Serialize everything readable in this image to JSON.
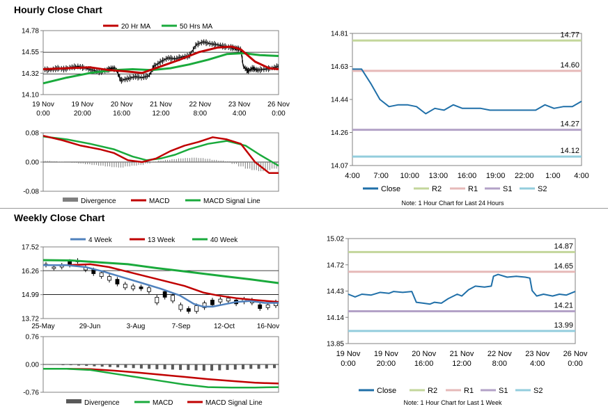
{
  "hourly": {
    "section_title": "Hourly Close Chart",
    "price_chart": {
      "type": "line",
      "legend": [
        "20 Hr MA",
        "50 Hrs MA"
      ],
      "legend_colors": [
        "#c00000",
        "#1aaa3c"
      ],
      "y_ticks": [
        "14.78",
        "14.55",
        "14.32",
        "14.10"
      ],
      "ylim": [
        14.1,
        14.78
      ],
      "x_ticks": [
        [
          "19 Nov",
          "0:00"
        ],
        [
          "19 Nov",
          "20:00"
        ],
        [
          "20 Nov",
          "16:00"
        ],
        [
          "21 Nov",
          "12:00"
        ],
        [
          "22 Nov",
          "8:00"
        ],
        [
          "23 Nov",
          "4:00"
        ],
        [
          "26 Nov",
          "0:00"
        ]
      ],
      "close": [
        [
          0,
          14.37
        ],
        [
          0.03,
          14.36
        ],
        [
          0.06,
          14.38
        ],
        [
          0.09,
          14.37
        ],
        [
          0.12,
          14.39
        ],
        [
          0.15,
          14.4
        ],
        [
          0.18,
          14.38
        ],
        [
          0.21,
          14.36
        ],
        [
          0.24,
          14.34
        ],
        [
          0.27,
          14.36
        ],
        [
          0.29,
          14.38
        ],
        [
          0.31,
          14.37
        ],
        [
          0.33,
          14.25
        ],
        [
          0.36,
          14.27
        ],
        [
          0.39,
          14.29
        ],
        [
          0.42,
          14.28
        ],
        [
          0.45,
          14.3
        ],
        [
          0.47,
          14.4
        ],
        [
          0.5,
          14.45
        ],
        [
          0.53,
          14.49
        ],
        [
          0.56,
          14.48
        ],
        [
          0.59,
          14.5
        ],
        [
          0.62,
          14.51
        ],
        [
          0.65,
          14.63
        ],
        [
          0.68,
          14.66
        ],
        [
          0.71,
          14.64
        ],
        [
          0.74,
          14.63
        ],
        [
          0.77,
          14.61
        ],
        [
          0.8,
          14.6
        ],
        [
          0.82,
          14.59
        ],
        [
          0.84,
          14.58
        ],
        [
          0.85,
          14.4
        ],
        [
          0.87,
          14.35
        ],
        [
          0.89,
          14.38
        ],
        [
          0.91,
          14.36
        ],
        [
          0.94,
          14.37
        ],
        [
          0.97,
          14.38
        ],
        [
          1.0,
          14.4
        ]
      ],
      "ma20": [
        [
          0,
          14.37
        ],
        [
          0.1,
          14.38
        ],
        [
          0.2,
          14.39
        ],
        [
          0.28,
          14.36
        ],
        [
          0.34,
          14.35
        ],
        [
          0.42,
          14.33
        ],
        [
          0.5,
          14.4
        ],
        [
          0.58,
          14.47
        ],
        [
          0.66,
          14.55
        ],
        [
          0.74,
          14.6
        ],
        [
          0.8,
          14.61
        ],
        [
          0.84,
          14.58
        ],
        [
          0.9,
          14.45
        ],
        [
          0.96,
          14.38
        ],
        [
          1.0,
          14.37
        ]
      ],
      "ma50": [
        [
          0,
          14.22
        ],
        [
          0.1,
          14.28
        ],
        [
          0.2,
          14.33
        ],
        [
          0.3,
          14.36
        ],
        [
          0.38,
          14.37
        ],
        [
          0.46,
          14.36
        ],
        [
          0.54,
          14.38
        ],
        [
          0.62,
          14.42
        ],
        [
          0.7,
          14.47
        ],
        [
          0.78,
          14.53
        ],
        [
          0.85,
          14.54
        ],
        [
          0.92,
          14.52
        ],
        [
          1.0,
          14.51
        ]
      ]
    },
    "macd_chart": {
      "type": "line",
      "y_ticks": [
        "0.08",
        "0.00",
        "-0.08"
      ],
      "ylim": [
        -0.08,
        0.08
      ],
      "legend": [
        "Divergence",
        "MACD",
        "MACD Signal Line"
      ],
      "legend_colors": [
        "#7f7f7f",
        "#c00000",
        "#1aaa3c"
      ],
      "macd": [
        [
          0,
          0.072
        ],
        [
          0.08,
          0.06
        ],
        [
          0.16,
          0.045
        ],
        [
          0.24,
          0.035
        ],
        [
          0.3,
          0.025
        ],
        [
          0.36,
          0.005
        ],
        [
          0.42,
          0.0
        ],
        [
          0.48,
          0.01
        ],
        [
          0.54,
          0.03
        ],
        [
          0.6,
          0.045
        ],
        [
          0.66,
          0.055
        ],
        [
          0.72,
          0.068
        ],
        [
          0.78,
          0.062
        ],
        [
          0.84,
          0.05
        ],
        [
          0.9,
          0.0
        ],
        [
          0.96,
          -0.03
        ],
        [
          1.0,
          -0.03
        ]
      ],
      "signal": [
        [
          0,
          0.07
        ],
        [
          0.1,
          0.062
        ],
        [
          0.2,
          0.05
        ],
        [
          0.3,
          0.035
        ],
        [
          0.38,
          0.015
        ],
        [
          0.44,
          0.005
        ],
        [
          0.5,
          0.01
        ],
        [
          0.56,
          0.02
        ],
        [
          0.62,
          0.035
        ],
        [
          0.7,
          0.05
        ],
        [
          0.78,
          0.058
        ],
        [
          0.86,
          0.045
        ],
        [
          0.92,
          0.02
        ],
        [
          1.0,
          -0.01
        ]
      ],
      "divergence": [
        0.003,
        0.002,
        0.001,
        0.0,
        -0.002,
        -0.004,
        -0.006,
        -0.008,
        -0.01,
        -0.012,
        -0.014,
        -0.015,
        -0.012,
        -0.01,
        -0.008,
        -0.004,
        0.001,
        0.004,
        0.006,
        0.008,
        0.01,
        0.011,
        0.012,
        0.011,
        0.009,
        0.006,
        0.004,
        0.002,
        -0.005,
        -0.012,
        -0.018,
        -0.022,
        -0.025,
        -0.022,
        -0.018
      ]
    },
    "pivot_chart": {
      "type": "line",
      "y_ticks": [
        "14.81",
        "14.63",
        "14.44",
        "14.26",
        "14.07"
      ],
      "ylim": [
        14.07,
        14.81
      ],
      "x_ticks": [
        "4:00",
        "7:00",
        "10:00",
        "13:00",
        "16:00",
        "19:00",
        "22:00",
        "1:00",
        "4:00"
      ],
      "levels": {
        "R2": 14.77,
        "R1": 14.6,
        "S1": 14.27,
        "S2": 14.12
      },
      "level_labels": [
        "14.77",
        "14.60",
        "14.27",
        "14.12"
      ],
      "legend": [
        "Close",
        "R2",
        "R1",
        "S1",
        "S2"
      ],
      "legend_colors": [
        "#1f6fa8",
        "#c3d69b",
        "#e6b9b8",
        "#b3a2c7",
        "#93cddd"
      ],
      "close": [
        [
          0,
          14.61
        ],
        [
          1,
          14.61
        ],
        [
          2,
          14.53
        ],
        [
          3,
          14.44
        ],
        [
          4,
          14.4
        ],
        [
          5,
          14.41
        ],
        [
          6,
          14.41
        ],
        [
          7,
          14.4
        ],
        [
          8,
          14.36
        ],
        [
          9,
          14.39
        ],
        [
          10,
          14.38
        ],
        [
          11,
          14.41
        ],
        [
          12,
          14.39
        ],
        [
          13,
          14.39
        ],
        [
          14,
          14.39
        ],
        [
          15,
          14.38
        ],
        [
          16,
          14.38
        ],
        [
          17,
          14.38
        ],
        [
          18,
          14.38
        ],
        [
          19,
          14.38
        ],
        [
          20,
          14.38
        ],
        [
          21,
          14.41
        ],
        [
          22,
          14.39
        ],
        [
          23,
          14.4
        ],
        [
          24,
          14.4
        ],
        [
          25,
          14.43
        ]
      ],
      "note": "Note: 1 Hour Chart for Last 24 Hours"
    }
  },
  "weekly": {
    "section_title": "Weekly Close Chart",
    "price_chart": {
      "type": "line",
      "legend": [
        "4 Week",
        "13 Week",
        "40 Week"
      ],
      "legend_colors": [
        "#4f81bd",
        "#c00000",
        "#1aaa3c"
      ],
      "y_ticks": [
        "17.52",
        "16.26",
        "14.99",
        "13.72"
      ],
      "ylim": [
        13.72,
        17.52
      ],
      "x_ticks": [
        "25-May",
        "29-Jun",
        "3-Aug",
        "7-Sep",
        "12-Oct",
        "16-Nov"
      ],
      "candles": [
        [
          16.55,
          16.6
        ],
        [
          16.4,
          16.45
        ],
        [
          16.45,
          16.55
        ],
        [
          16.55,
          16.75
        ],
        [
          16.75,
          16.8
        ],
        [
          16.3,
          16.45
        ],
        [
          16.1,
          16.3
        ],
        [
          15.95,
          16.15
        ],
        [
          15.75,
          15.95
        ],
        [
          15.55,
          15.8
        ],
        [
          15.35,
          15.55
        ],
        [
          15.3,
          15.45
        ],
        [
          15.3,
          15.4
        ],
        [
          15.15,
          15.35
        ],
        [
          14.55,
          14.85
        ],
        [
          14.85,
          15.15
        ],
        [
          14.65,
          14.95
        ],
        [
          14.2,
          14.45
        ],
        [
          14.1,
          14.25
        ],
        [
          14.1,
          14.4
        ],
        [
          14.3,
          14.55
        ],
        [
          14.45,
          14.7
        ],
        [
          14.6,
          14.75
        ],
        [
          14.65,
          14.8
        ],
        [
          14.5,
          14.7
        ],
        [
          14.6,
          14.75
        ],
        [
          14.55,
          14.7
        ],
        [
          14.25,
          14.45
        ],
        [
          14.3,
          14.45
        ],
        [
          14.4,
          14.6
        ]
      ],
      "wk4": [
        [
          0,
          16.55
        ],
        [
          0.1,
          16.55
        ],
        [
          0.18,
          16.45
        ],
        [
          0.26,
          16.2
        ],
        [
          0.34,
          15.9
        ],
        [
          0.42,
          15.6
        ],
        [
          0.5,
          15.3
        ],
        [
          0.58,
          14.95
        ],
        [
          0.64,
          14.5
        ],
        [
          0.68,
          14.35
        ],
        [
          0.72,
          14.35
        ],
        [
          0.76,
          14.45
        ],
        [
          0.82,
          14.6
        ],
        [
          0.88,
          14.65
        ],
        [
          0.94,
          14.55
        ],
        [
          1.0,
          14.55
        ]
      ],
      "wk13": [
        [
          0,
          16.55
        ],
        [
          0.1,
          16.55
        ],
        [
          0.2,
          16.6
        ],
        [
          0.28,
          16.45
        ],
        [
          0.36,
          16.2
        ],
        [
          0.44,
          15.95
        ],
        [
          0.52,
          15.7
        ],
        [
          0.6,
          15.45
        ],
        [
          0.68,
          15.1
        ],
        [
          0.74,
          14.95
        ],
        [
          0.82,
          14.8
        ],
        [
          0.9,
          14.7
        ],
        [
          1.0,
          14.6
        ]
      ],
      "wk40": [
        [
          0,
          16.82
        ],
        [
          0.12,
          16.8
        ],
        [
          0.24,
          16.7
        ],
        [
          0.36,
          16.6
        ],
        [
          0.48,
          16.4
        ],
        [
          0.58,
          16.25
        ],
        [
          0.68,
          16.1
        ],
        [
          0.78,
          15.95
        ],
        [
          0.88,
          15.8
        ],
        [
          1.0,
          15.6
        ]
      ]
    },
    "macd_chart": {
      "type": "line",
      "y_ticks": [
        "0.76",
        "0.00",
        "-0.76"
      ],
      "ylim": [
        -0.76,
        0.76
      ],
      "legend": [
        "Divergence",
        "MACD",
        "MACD Signal Line"
      ],
      "legend_colors": [
        "#595959",
        "#1aaa3c",
        "#c00000"
      ],
      "macd": [
        [
          0,
          -0.12
        ],
        [
          0.1,
          -0.12
        ],
        [
          0.2,
          -0.15
        ],
        [
          0.3,
          -0.25
        ],
        [
          0.4,
          -0.35
        ],
        [
          0.5,
          -0.45
        ],
        [
          0.6,
          -0.55
        ],
        [
          0.7,
          -0.62
        ],
        [
          0.8,
          -0.63
        ],
        [
          0.9,
          -0.63
        ],
        [
          1.0,
          -0.62
        ]
      ],
      "signal": [
        [
          0,
          -0.12
        ],
        [
          0.1,
          -0.12
        ],
        [
          0.2,
          -0.13
        ],
        [
          0.3,
          -0.17
        ],
        [
          0.4,
          -0.22
        ],
        [
          0.5,
          -0.28
        ],
        [
          0.6,
          -0.34
        ],
        [
          0.7,
          -0.4
        ],
        [
          0.8,
          -0.45
        ],
        [
          0.9,
          -0.5
        ],
        [
          1.0,
          -0.52
        ]
      ],
      "divergence": [
        -0.01,
        -0.01,
        -0.02,
        -0.02,
        -0.03,
        -0.04,
        -0.05,
        -0.06,
        -0.07,
        -0.08,
        -0.09,
        -0.1,
        -0.11,
        -0.12,
        -0.13,
        -0.13,
        -0.14,
        -0.15,
        -0.15,
        -0.16,
        -0.17,
        -0.17,
        -0.16,
        -0.15,
        -0.14,
        -0.13,
        -0.12,
        -0.12,
        -0.11,
        -0.1
      ]
    },
    "pivot_chart": {
      "type": "line",
      "y_ticks": [
        "15.02",
        "14.72",
        "14.43",
        "14.14",
        "13.85"
      ],
      "ylim": [
        13.85,
        15.02
      ],
      "x_ticks": [
        [
          "19 Nov",
          "0:00"
        ],
        [
          "19 Nov",
          "20:00"
        ],
        [
          "20 Nov",
          "16:00"
        ],
        [
          "21 Nov",
          "12:00"
        ],
        [
          "22 Nov",
          "8:00"
        ],
        [
          "23 Nov",
          "4:00"
        ],
        [
          "26 Nov",
          "0:00"
        ]
      ],
      "levels": {
        "R2": 14.87,
        "R1": 14.65,
        "S1": 14.21,
        "S2": 13.99
      },
      "level_labels": [
        "14.87",
        "14.65",
        "14.21",
        "13.99"
      ],
      "legend": [
        "Close",
        "R2",
        "R1",
        "S1",
        "S2"
      ],
      "legend_colors": [
        "#1f6fa8",
        "#c3d69b",
        "#e6b9b8",
        "#b3a2c7",
        "#93cddd"
      ],
      "close": [
        [
          0,
          14.4
        ],
        [
          0.03,
          14.37
        ],
        [
          0.06,
          14.4
        ],
        [
          0.1,
          14.39
        ],
        [
          0.14,
          14.42
        ],
        [
          0.18,
          14.41
        ],
        [
          0.2,
          14.43
        ],
        [
          0.24,
          14.42
        ],
        [
          0.28,
          14.43
        ],
        [
          0.3,
          14.31
        ],
        [
          0.33,
          14.3
        ],
        [
          0.36,
          14.29
        ],
        [
          0.38,
          14.31
        ],
        [
          0.41,
          14.3
        ],
        [
          0.44,
          14.35
        ],
        [
          0.48,
          14.4
        ],
        [
          0.5,
          14.38
        ],
        [
          0.53,
          14.45
        ],
        [
          0.56,
          14.49
        ],
        [
          0.6,
          14.48
        ],
        [
          0.63,
          14.49
        ],
        [
          0.64,
          14.6
        ],
        [
          0.66,
          14.62
        ],
        [
          0.7,
          14.59
        ],
        [
          0.74,
          14.6
        ],
        [
          0.78,
          14.59
        ],
        [
          0.8,
          14.58
        ],
        [
          0.81,
          14.44
        ],
        [
          0.83,
          14.38
        ],
        [
          0.86,
          14.4
        ],
        [
          0.9,
          14.38
        ],
        [
          0.93,
          14.4
        ],
        [
          0.96,
          14.39
        ],
        [
          1.0,
          14.43
        ]
      ],
      "note": "Note: 1 Hour Chart for Last 1 Week"
    }
  }
}
